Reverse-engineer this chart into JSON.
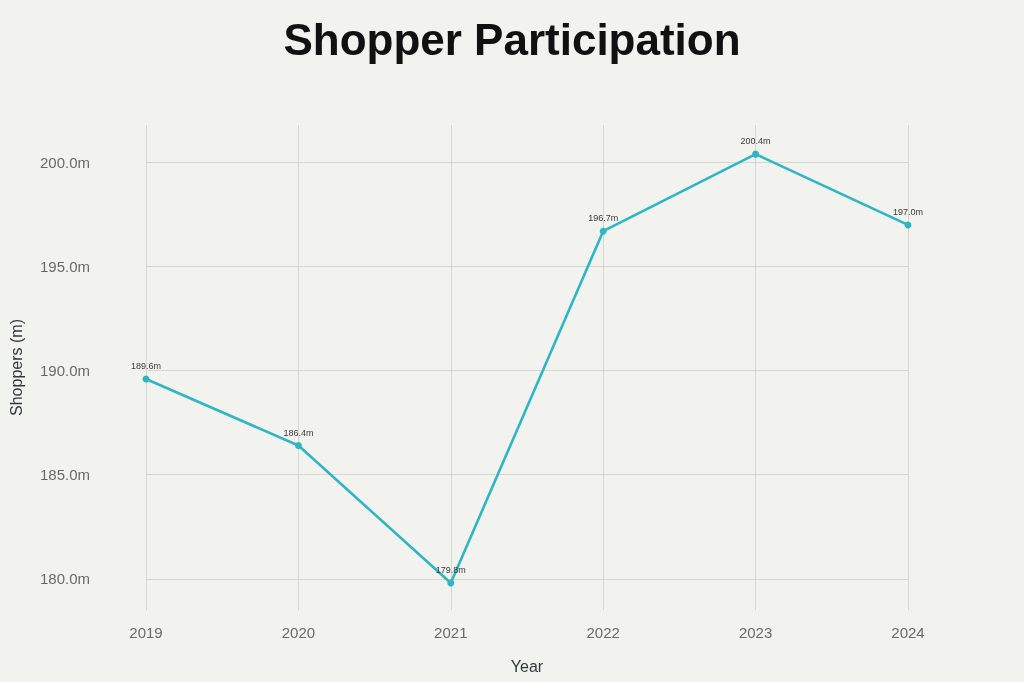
{
  "chart_data": {
    "type": "line",
    "title": "Shopper Participation",
    "xlabel": "Year",
    "ylabel": "Shoppers (m)",
    "categories": [
      "2019",
      "2020",
      "2021",
      "2022",
      "2023",
      "2024"
    ],
    "series": [
      {
        "color": "#2fb6c4",
        "values": [
          189.6,
          186.4,
          179.8,
          196.7,
          200.4,
          197.0
        ],
        "value_labels": [
          "189.6m",
          "186.4m",
          "179.8m",
          "196.7m",
          "200.4m",
          "197.0m"
        ]
      }
    ],
    "ylim": [
      178.5,
      201.8
    ],
    "yticks": [
      {
        "value": 180,
        "label": "180.0m"
      },
      {
        "value": 185,
        "label": "185.0m"
      },
      {
        "value": 190,
        "label": "190.0m"
      },
      {
        "value": 195,
        "label": "195.0m"
      },
      {
        "value": 200,
        "label": "200.0m"
      }
    ],
    "grid": true,
    "marker": "circle",
    "line_style": "solid"
  }
}
